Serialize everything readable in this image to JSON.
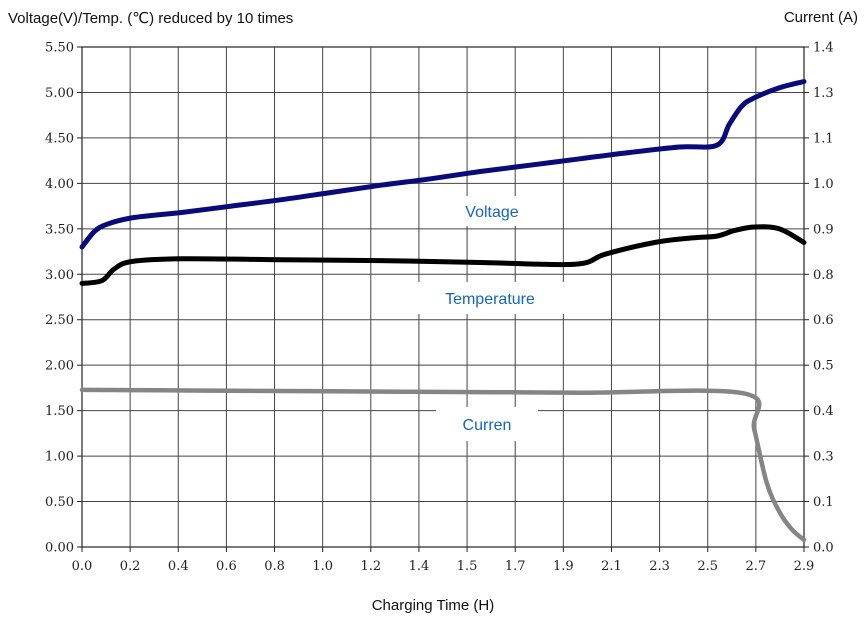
{
  "chart_data": {
    "type": "line",
    "title": "",
    "xlabel": "Charging Time (H)",
    "ylabel_left": "Voltage(V)/Temp. (℃) reduced by 10 times",
    "ylabel_right": "Current (A)",
    "x_ticks": [
      "0.0",
      "0.2",
      "0.4",
      "0.6",
      "0.8",
      "1.0",
      "1.2",
      "1.4",
      "1.5",
      "1.7",
      "1.9",
      "2.1",
      "2.3",
      "2.5",
      "2.7",
      "2.9"
    ],
    "y_left_ticks": [
      "0.00",
      "0.50",
      "1.00",
      "1.50",
      "2.00",
      "2.50",
      "3.00",
      "3.50",
      "4.00",
      "4.50",
      "5.00",
      "5.50"
    ],
    "y_right_ticks": [
      "0.0",
      "0.1",
      "0.3",
      "0.4",
      "0.5",
      "0.6",
      "0.8",
      "0.9",
      "1.0",
      "1.1",
      "1.3",
      "1.4"
    ],
    "xlim": [
      0.0,
      2.9
    ],
    "ylim_left": [
      0.0,
      5.5
    ],
    "ylim_right": [
      0.0,
      1.4
    ],
    "grid": true,
    "series": [
      {
        "name": "Voltage",
        "axis": "left",
        "color": "#0a0a7a",
        "x": [
          0.0,
          0.05,
          0.1,
          0.2,
          0.4,
          0.6,
          0.8,
          1.0,
          1.2,
          1.4,
          1.6,
          1.8,
          2.0,
          2.2,
          2.4,
          2.55,
          2.6,
          2.65,
          2.7,
          2.8,
          2.9
        ],
        "y": [
          3.3,
          3.47,
          3.55,
          3.62,
          3.68,
          3.75,
          3.82,
          3.9,
          3.98,
          4.05,
          4.13,
          4.2,
          4.27,
          4.34,
          4.4,
          4.42,
          4.65,
          4.85,
          4.94,
          5.05,
          5.12
        ]
      },
      {
        "name": "Temperature",
        "axis": "left",
        "color": "#000000",
        "x": [
          0.0,
          0.08,
          0.13,
          0.2,
          0.4,
          0.8,
          1.2,
          1.6,
          1.98,
          2.1,
          2.3,
          2.45,
          2.55,
          2.62,
          2.7,
          2.8,
          2.9
        ],
        "y": [
          2.9,
          2.93,
          3.06,
          3.14,
          3.17,
          3.16,
          3.15,
          3.13,
          3.11,
          3.22,
          3.35,
          3.4,
          3.42,
          3.48,
          3.52,
          3.5,
          3.35
        ]
      },
      {
        "name": "Curren",
        "axis": "right",
        "color": "#858585",
        "x": [
          0.0,
          0.5,
          1.0,
          1.5,
          2.0,
          2.66,
          2.7,
          2.75,
          2.8,
          2.85,
          2.9
        ],
        "y": [
          0.44,
          0.438,
          0.436,
          0.434,
          0.432,
          0.43,
          0.33,
          0.18,
          0.1,
          0.05,
          0.02
        ]
      }
    ],
    "annotations": [
      "Voltage",
      "Temperature",
      "Curren"
    ]
  }
}
